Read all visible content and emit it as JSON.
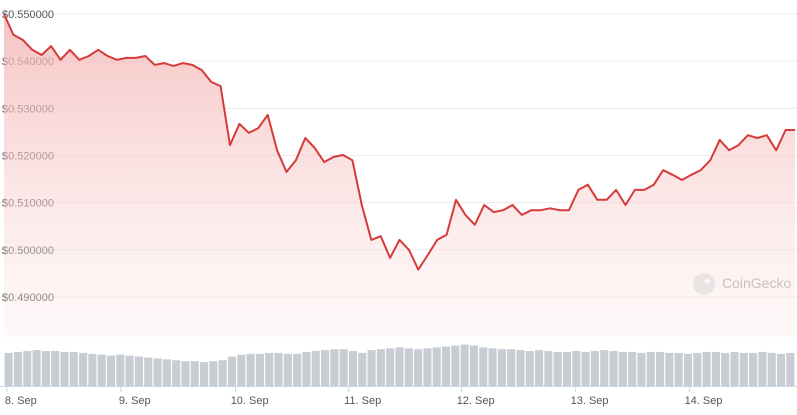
{
  "chart_data": {
    "type": "line",
    "watermark": "CoinGecko",
    "series": [
      {
        "name": "Price",
        "color": "#d63b3b",
        "values": [
          0.55,
          0.5456,
          0.5445,
          0.5424,
          0.5413,
          0.5432,
          0.5403,
          0.5424,
          0.5403,
          0.5411,
          0.5424,
          0.5411,
          0.5403,
          0.5407,
          0.5407,
          0.5411,
          0.5392,
          0.5396,
          0.539,
          0.5396,
          0.5392,
          0.5381,
          0.5356,
          0.5347,
          0.5222,
          0.5267,
          0.5248,
          0.5258,
          0.5286,
          0.5211,
          0.5165,
          0.519,
          0.5237,
          0.5216,
          0.5186,
          0.5197,
          0.5201,
          0.519,
          0.5095,
          0.5021,
          0.5029,
          0.4983,
          0.5021,
          0.5,
          0.4958,
          0.4989,
          0.5021,
          0.5032,
          0.5106,
          0.5074,
          0.5053,
          0.5095,
          0.508,
          0.5084,
          0.5095,
          0.5074,
          0.5084,
          0.5084,
          0.5088,
          0.5084,
          0.5084,
          0.5127,
          0.5138,
          0.5106,
          0.5106,
          0.5127,
          0.5095,
          0.5127,
          0.5127,
          0.5138,
          0.5169,
          0.5159,
          0.5148,
          0.5159,
          0.5169,
          0.519,
          0.5233,
          0.5211,
          0.5222,
          0.5243,
          0.5237,
          0.5243,
          0.5211,
          0.5254,
          0.5254
        ]
      }
    ],
    "volume": {
      "color": "#c8ccd3",
      "values": [
        36,
        37,
        38,
        39,
        38,
        38,
        37,
        37,
        36,
        35,
        34,
        33,
        34,
        33,
        32,
        31,
        30,
        29,
        28,
        27,
        27,
        26,
        27,
        28,
        32,
        34,
        35,
        35,
        36,
        36,
        35,
        35,
        37,
        38,
        39,
        40,
        40,
        38,
        36,
        39,
        40,
        41,
        42,
        41,
        40,
        41,
        42,
        43,
        44,
        45,
        44,
        42,
        41,
        40,
        40,
        39,
        38,
        39,
        38,
        37,
        37,
        38,
        37,
        38,
        39,
        38,
        37,
        37,
        36,
        37,
        37,
        36,
        36,
        35,
        36,
        37,
        37,
        36,
        37,
        36,
        36,
        37,
        36,
        35,
        36
      ]
    },
    "vlim": [
      0,
      50
    ],
    "xlim": [
      0,
      84
    ],
    "xticks": [
      {
        "value": 0.3,
        "label": "8. Sep"
      },
      {
        "value": 12.4,
        "label": "9. Sep"
      },
      {
        "value": 24.6,
        "label": "10. Sep"
      },
      {
        "value": 36.6,
        "label": "11. Sep"
      },
      {
        "value": 48.6,
        "label": "12. Sep"
      },
      {
        "value": 60.7,
        "label": "13. Sep"
      },
      {
        "value": 72.8,
        "label": "14. Sep"
      }
    ],
    "ylim": [
      0.49,
      0.55
    ],
    "yticks": [
      {
        "value": 0.49,
        "label": "$0.490000"
      },
      {
        "value": 0.5,
        "label": "$0.500000"
      },
      {
        "value": 0.51,
        "label": "$0.510000"
      },
      {
        "value": 0.52,
        "label": "$0.520000"
      },
      {
        "value": 0.53,
        "label": "$0.530000"
      },
      {
        "value": 0.54,
        "label": "$0.540000"
      },
      {
        "value": 0.55,
        "label": "$0.550000"
      }
    ],
    "grid": true
  }
}
